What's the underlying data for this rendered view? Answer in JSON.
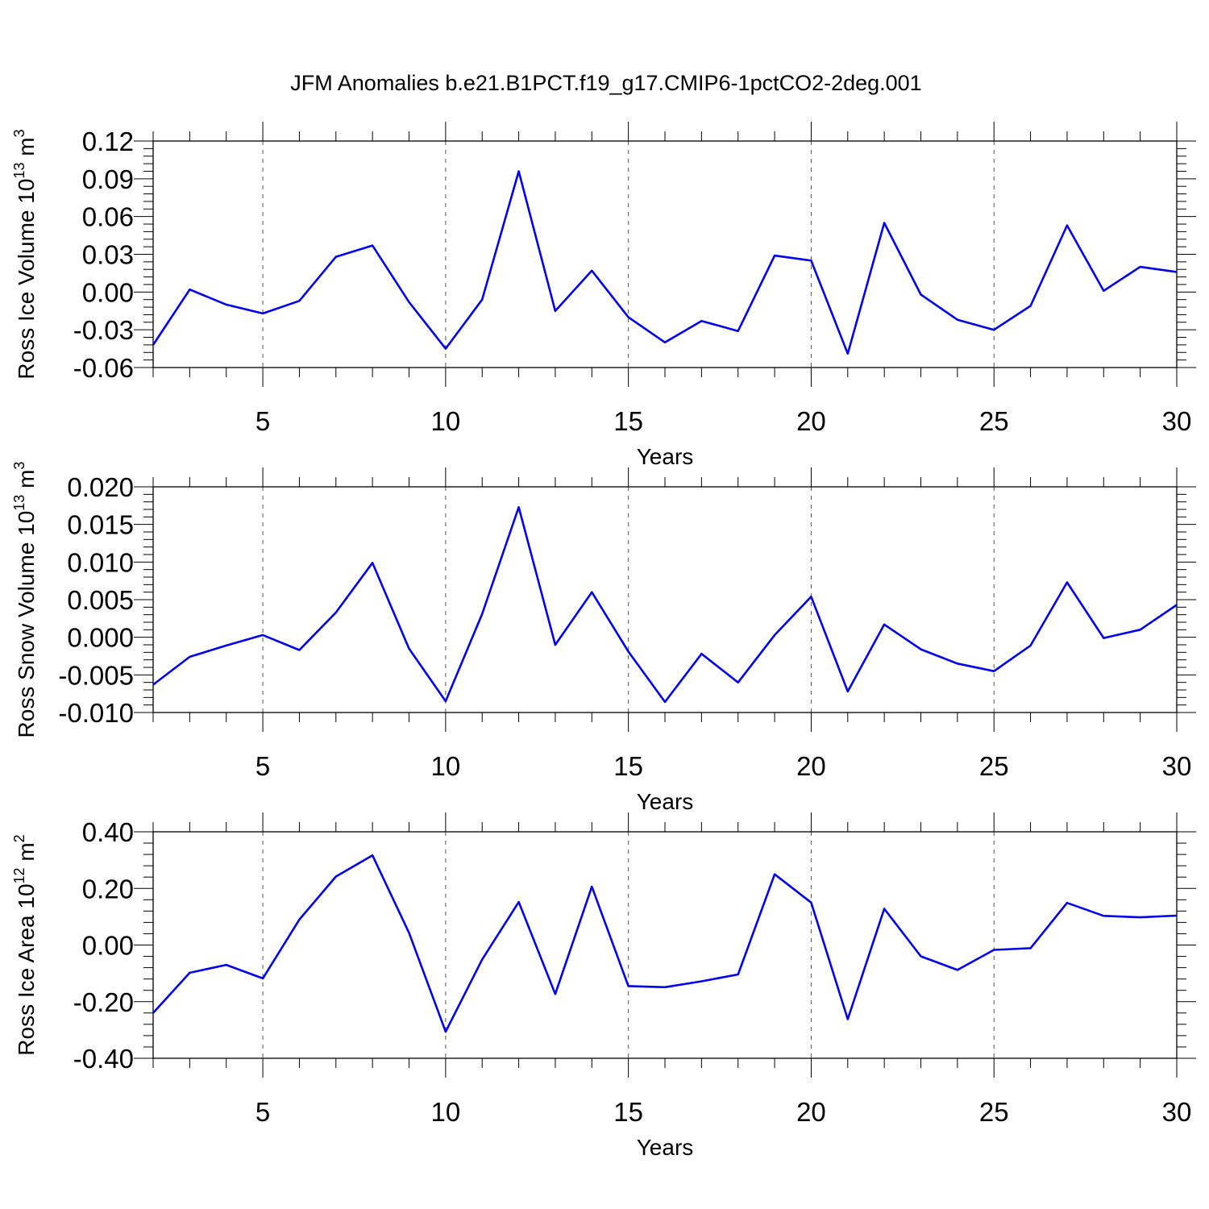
{
  "title": "JFM Anomalies b.e21.B1PCT.f19_g17.CMIP6-1pctCO2-2deg.001",
  "colors": {
    "line": "#0000ee",
    "axis": "#000000",
    "grid": "#555555"
  },
  "chart_data": [
    {
      "type": "line",
      "ylabel": "Ross Ice Volume 10",
      "ylabel_exp": "13",
      "ylabel_unit": " m",
      "ylabel_unit_exp": "3",
      "xlabel": "Years",
      "xlim": [
        2,
        30
      ],
      "ylim": [
        -0.06,
        0.12
      ],
      "yticks": [
        -0.06,
        -0.03,
        0.0,
        0.03,
        0.06,
        0.09,
        0.12
      ],
      "ytick_labels": [
        "-0.06",
        "-0.03",
        "0.00",
        "0.03",
        "0.06",
        "0.09",
        "0.12"
      ],
      "xticks": [
        5,
        10,
        15,
        20,
        25,
        30
      ],
      "xtick_labels": [
        "5",
        "10",
        "15",
        "20",
        "25",
        "30"
      ],
      "x": [
        2,
        3,
        4,
        5,
        6,
        7,
        8,
        9,
        10,
        11,
        12,
        13,
        14,
        15,
        16,
        17,
        18,
        19,
        20,
        21,
        22,
        23,
        24,
        25,
        26,
        27,
        28,
        29,
        30
      ],
      "values": [
        -0.042,
        0.002,
        -0.01,
        -0.017,
        -0.007,
        0.028,
        0.037,
        -0.008,
        -0.045,
        -0.006,
        0.096,
        -0.015,
        0.017,
        -0.02,
        -0.04,
        -0.023,
        -0.031,
        0.029,
        0.025,
        -0.049,
        0.055,
        -0.002,
        -0.022,
        -0.03,
        -0.011,
        0.053,
        0.001,
        0.02,
        0.016
      ]
    },
    {
      "type": "line",
      "ylabel": "Ross Snow Volume 10",
      "ylabel_exp": "13",
      "ylabel_unit": " m",
      "ylabel_unit_exp": "3",
      "xlabel": "Years",
      "xlim": [
        2,
        30
      ],
      "ylim": [
        -0.01,
        0.02
      ],
      "yticks": [
        -0.01,
        -0.005,
        0.0,
        0.005,
        0.01,
        0.015,
        0.02
      ],
      "ytick_labels": [
        "-0.010",
        "-0.005",
        "0.000",
        "0.005",
        "0.010",
        "0.015",
        "0.020"
      ],
      "xticks": [
        5,
        10,
        15,
        20,
        25,
        30
      ],
      "xtick_labels": [
        "5",
        "10",
        "15",
        "20",
        "25",
        "30"
      ],
      "x": [
        2,
        3,
        4,
        5,
        6,
        7,
        8,
        9,
        10,
        11,
        12,
        13,
        14,
        15,
        16,
        17,
        18,
        19,
        20,
        21,
        22,
        23,
        24,
        25,
        26,
        27,
        28,
        29,
        30
      ],
      "values": [
        -0.0063,
        -0.0026,
        -0.0011,
        0.0003,
        -0.0017,
        0.0033,
        0.0099,
        -0.0015,
        -0.0085,
        0.0031,
        0.0173,
        -0.001,
        0.006,
        -0.0019,
        -0.0086,
        -0.0022,
        -0.006,
        0.0003,
        0.0054,
        -0.0072,
        0.0017,
        -0.0016,
        -0.0035,
        -0.0045,
        -0.0011,
        0.0073,
        -0.0001,
        0.001,
        0.0043
      ]
    },
    {
      "type": "line",
      "ylabel": "Ross Ice Area 10",
      "ylabel_exp": "12",
      "ylabel_unit": " m",
      "ylabel_unit_exp": "2",
      "xlabel": "Years",
      "xlim": [
        2,
        30
      ],
      "ylim": [
        -0.4,
        0.4
      ],
      "yticks": [
        -0.4,
        -0.2,
        0.0,
        0.2,
        0.4
      ],
      "ytick_labels": [
        "-0.40",
        "-0.20",
        "0.00",
        "0.20",
        "0.40"
      ],
      "xticks": [
        5,
        10,
        15,
        20,
        25,
        30
      ],
      "xtick_labels": [
        "5",
        "10",
        "15",
        "20",
        "25",
        "30"
      ],
      "x": [
        2,
        3,
        4,
        5,
        6,
        7,
        8,
        9,
        10,
        11,
        12,
        13,
        14,
        15,
        16,
        17,
        18,
        19,
        20,
        21,
        22,
        23,
        24,
        25,
        26,
        27,
        28,
        29,
        30
      ],
      "values": [
        -0.24,
        -0.098,
        -0.07,
        -0.118,
        0.09,
        0.242,
        0.317,
        0.043,
        -0.306,
        -0.051,
        0.152,
        -0.173,
        0.206,
        -0.145,
        -0.149,
        -0.128,
        -0.104,
        0.25,
        0.15,
        -0.262,
        0.128,
        -0.04,
        -0.088,
        -0.017,
        -0.011,
        0.149,
        0.103,
        0.098,
        0.104
      ]
    }
  ]
}
